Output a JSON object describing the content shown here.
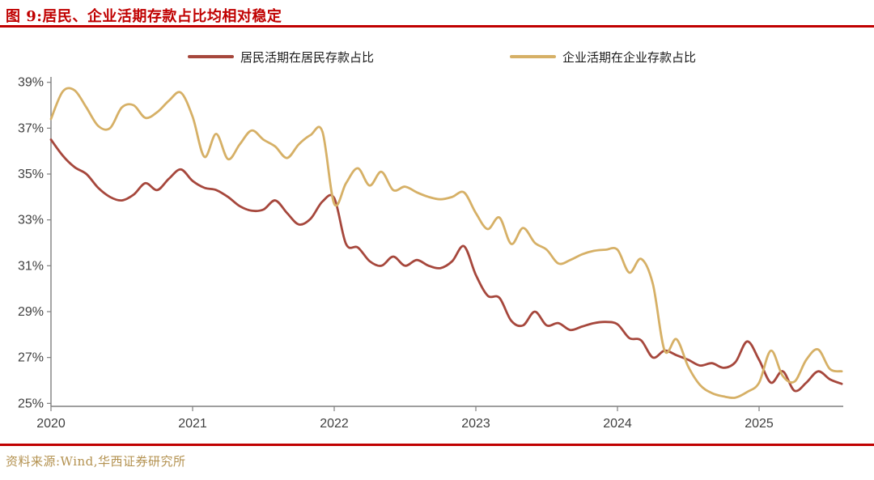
{
  "title": "图 9:居民、企业活期存款占比均相对稳定",
  "source": "资料来源:Wind,华西证券研究所",
  "colors": {
    "title_red": "#C00000",
    "rule_red": "#C00000",
    "source_tan": "#B3914F",
    "resident_line": "#A6473C",
    "corporate_line": "#D6B066",
    "axis_line": "#7f7f7f",
    "axis_text": "#3f3f3f"
  },
  "legend": {
    "resident_label": "居民活期在居民存款占比",
    "corporate_label": "企业活期在企业存款占比"
  },
  "chart_data": {
    "type": "line",
    "frequency": "monthly",
    "x_start": "2020-01",
    "x_end": "2025-08",
    "x_tick_labels": [
      "2020",
      "2021",
      "2022",
      "2023",
      "2024",
      "2025"
    ],
    "y_tick_labels": [
      "39%",
      "37%",
      "35%",
      "33%",
      "31%",
      "29%",
      "27%",
      "25%"
    ],
    "y_tick_values": [
      39,
      37,
      35,
      33,
      31,
      29,
      27,
      25
    ],
    "ylim": [
      25,
      39
    ],
    "grid": false,
    "legend_position": "top",
    "series": [
      {
        "name": "居民活期在居民存款占比",
        "color_key": "resident_line",
        "values": [
          36.5,
          35.8,
          35.3,
          35.0,
          34.4,
          34.0,
          33.85,
          34.1,
          34.6,
          34.3,
          34.8,
          35.2,
          34.7,
          34.4,
          34.3,
          34.0,
          33.6,
          33.4,
          33.45,
          33.85,
          33.3,
          32.8,
          33.05,
          33.8,
          33.95,
          31.95,
          31.8,
          31.2,
          31.0,
          31.4,
          31.0,
          31.25,
          31.0,
          30.9,
          31.2,
          31.85,
          30.6,
          29.7,
          29.6,
          28.6,
          28.4,
          29.0,
          28.4,
          28.5,
          28.2,
          28.35,
          28.5,
          28.55,
          28.45,
          27.85,
          27.75,
          27.0,
          27.3,
          27.1,
          26.9,
          26.65,
          26.75,
          26.55,
          26.8,
          27.7,
          26.9,
          25.9,
          26.4,
          25.55,
          25.9,
          26.4,
          26.05,
          25.85
        ]
      },
      {
        "name": "企业活期在企业存款占比",
        "color_key": "corporate_line",
        "values": [
          37.4,
          38.6,
          38.65,
          37.9,
          37.1,
          37.0,
          37.9,
          38.0,
          37.45,
          37.7,
          38.2,
          38.55,
          37.5,
          35.75,
          36.75,
          35.65,
          36.3,
          36.9,
          36.5,
          36.2,
          35.7,
          36.3,
          36.7,
          36.85,
          33.7,
          34.6,
          35.25,
          34.5,
          35.1,
          34.3,
          34.45,
          34.2,
          34.0,
          33.9,
          34.0,
          34.2,
          33.3,
          32.6,
          33.1,
          31.95,
          32.65,
          32.0,
          31.7,
          31.1,
          31.25,
          31.5,
          31.65,
          31.7,
          31.7,
          30.7,
          31.3,
          30.2,
          27.3,
          27.8,
          26.6,
          25.8,
          25.45,
          25.3,
          25.25,
          25.5,
          25.9,
          27.3,
          26.2,
          25.95,
          26.9,
          27.35,
          26.5,
          26.4
        ]
      }
    ]
  }
}
